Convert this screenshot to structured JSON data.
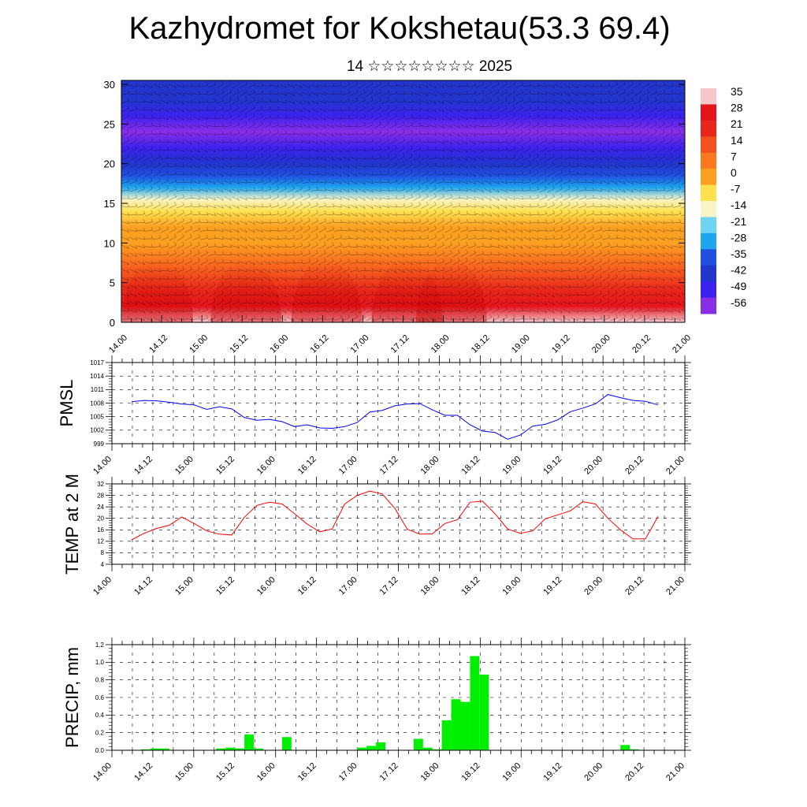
{
  "page": {
    "title": "Kazhydromet for Kokshetau(53.3 69.4)",
    "subtitle": "14 ☆☆☆☆☆☆☆☆ 2025"
  },
  "time_labels": [
    "14.00",
    "14.12",
    "15.00",
    "15.12",
    "16.00",
    "16.12",
    "17.00",
    "17.12",
    "18.00",
    "18.12",
    "19.00",
    "19.12",
    "20.00",
    "20.12",
    "21.00"
  ],
  "chart_data": [
    {
      "type": "heatmap",
      "title": "",
      "x": [
        "14.00",
        "14.12",
        "15.00",
        "15.12",
        "16.00",
        "16.12",
        "17.00",
        "17.12",
        "18.00",
        "18.12",
        "19.00",
        "19.12",
        "20.00",
        "20.12",
        "21.00"
      ],
      "y_ticks": [
        0,
        5,
        10,
        15,
        20,
        25,
        30
      ],
      "ylim": [
        0,
        30.5
      ],
      "colorbar": {
        "labels": [
          "35",
          "28",
          "21",
          "14",
          "7",
          "0",
          "-7",
          "-14",
          "-21",
          "-28",
          "-35",
          "-42",
          "-49",
          "-56"
        ],
        "stops": [
          "#f5c6cc",
          "#e5141c",
          "#e8261c",
          "#f4501e",
          "#f97820",
          "#fca022",
          "#ffe150",
          "#f8f4c8",
          "#6fd4f2",
          "#1ea5ee",
          "#2050e0",
          "#2235cc",
          "#3c22ee",
          "#8a2ee6"
        ]
      },
      "profile_levels": [
        0,
        2,
        4,
        6,
        8,
        10,
        12,
        14,
        15.5,
        17,
        18.5,
        20,
        22,
        24,
        26,
        28,
        30.5
      ],
      "profile_temperatures": [
        30,
        22,
        15,
        10,
        5,
        0,
        -6,
        -11,
        -18,
        -30,
        -38,
        -44,
        -52,
        -56,
        -53,
        -48,
        -42
      ]
    },
    {
      "type": "line",
      "ylabel": "PMSL",
      "y_ticks": [
        999,
        1002,
        1005,
        1008,
        1011,
        1014,
        1017
      ],
      "ylim": [
        999,
        1017
      ],
      "color": "#0000ff",
      "x": [
        0,
        0.1667,
        0.3333,
        0.5,
        0.6667,
        0.8333,
        1,
        1.1667,
        1.3333,
        1.5,
        1.6667,
        1.8333,
        2,
        2.1667,
        2.3333,
        2.5,
        2.6667,
        2.8333,
        3,
        3.1667,
        3.3333,
        3.5,
        3.6667,
        3.8333,
        4,
        4.1667,
        4.3333,
        4.5,
        4.6667,
        4.8333,
        5,
        5.1667,
        5.3333,
        5.5,
        5.6667,
        5.8333,
        6,
        6.1667,
        6.3333,
        6.5,
        6.6667,
        6.8333,
        7
      ],
      "values": [
        1008.3,
        1008.6,
        1008.5,
        1008.2,
        1007.8,
        1007.6,
        1006.6,
        1007.2,
        1006.7,
        1004.8,
        1004.2,
        1004.4,
        1003.9,
        1002.8,
        1003.2,
        1002.5,
        1002.4,
        1002.8,
        1003.7,
        1006.0,
        1006.4,
        1007.4,
        1007.8,
        1007.9,
        1006.5,
        1005.3,
        1005.3,
        1003.2,
        1001.8,
        1001.5,
        1000.0,
        1000.9,
        1002.9,
        1003.3,
        1004.3,
        1006.1,
        1006.9,
        1007.8,
        1009.9,
        1009.2,
        1008.6,
        1008.4,
        1007.6
      ]
    },
    {
      "type": "line",
      "ylabel": "TEMP at 2 M",
      "y_ticks": [
        4,
        8,
        12,
        16,
        20,
        24,
        28,
        32
      ],
      "ylim": [
        4,
        32
      ],
      "color": "#ff0000",
      "x": [
        0,
        0.1667,
        0.3333,
        0.5,
        0.6667,
        0.8333,
        1,
        1.1667,
        1.3333,
        1.5,
        1.6667,
        1.8333,
        2,
        2.1667,
        2.3333,
        2.5,
        2.6667,
        2.8333,
        3,
        3.1667,
        3.3333,
        3.5,
        3.6667,
        3.8333,
        4,
        4.1667,
        4.3333,
        4.5,
        4.6667,
        4.8333,
        5,
        5.1667,
        5.3333,
        5.5,
        5.6667,
        5.8333,
        6,
        6.1667,
        6.3333,
        6.5,
        6.6667,
        6.8333,
        7
      ],
      "values": [
        12.5,
        14.8,
        16.5,
        17.6,
        20.5,
        18.2,
        15.6,
        14.5,
        14.2,
        20.4,
        24.5,
        25.6,
        25.0,
        21.6,
        18.0,
        15.3,
        16.3,
        25.0,
        28.0,
        29.5,
        28.5,
        23.5,
        16.2,
        14.5,
        14.6,
        18.2,
        19.5,
        25.6,
        26.0,
        21.6,
        16.3,
        14.8,
        15.6,
        19.8,
        21.2,
        22.6,
        25.8,
        25.0,
        20.0,
        16.0,
        12.8,
        12.9,
        20.7
      ]
    },
    {
      "type": "bar",
      "ylabel": "PRECIP, mm",
      "y_ticks": [
        "0.0",
        "0.2",
        "0.4",
        "0.6",
        "0.8",
        "1.0",
        "1.2"
      ],
      "ylim": [
        0,
        1.2
      ],
      "color": "#00ee00",
      "bar_width_days": 0.125,
      "x": [
        0.125,
        0.25,
        0.375,
        1.125,
        1.25,
        1.375,
        1.5,
        1.625,
        2.0,
        3.0,
        3.125,
        3.25,
        3.75,
        3.875,
        4.0,
        4.125,
        4.25,
        4.375,
        4.5,
        4.625,
        4.75,
        6.5,
        6.625
      ],
      "values": [
        0.01,
        0.02,
        0.02,
        0.02,
        0.03,
        0.02,
        0.18,
        0.02,
        0.15,
        0.03,
        0.05,
        0.09,
        0.13,
        0.03,
        0.01,
        0.34,
        0.58,
        0.55,
        1.07,
        0.86,
        0.0,
        0.06,
        0.01
      ]
    }
  ]
}
